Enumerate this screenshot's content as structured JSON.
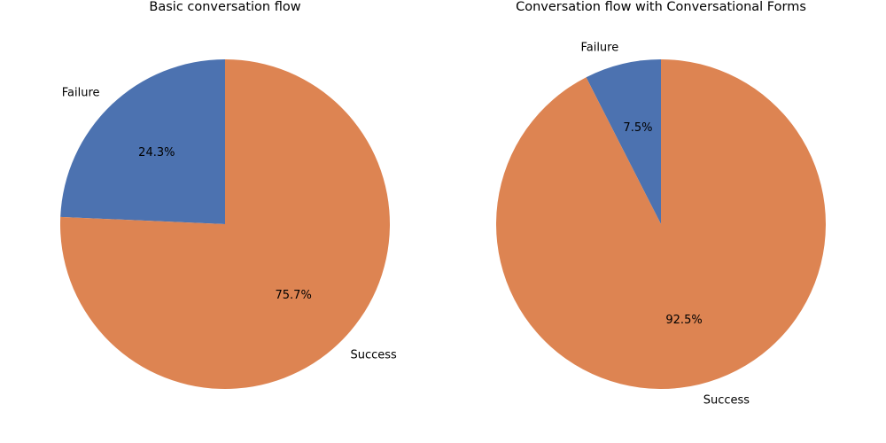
{
  "chart_data": [
    {
      "type": "pie",
      "title": "Basic conversation flow",
      "slices": [
        {
          "label": "Failure",
          "value": 24.3,
          "pct_label": "24.3%",
          "color": "#4c72b0"
        },
        {
          "label": "Success",
          "value": 75.7,
          "pct_label": "75.7%",
          "color": "#dd8452"
        }
      ],
      "start_angle_deg": 90,
      "direction": "counterclockwise",
      "legend": "none"
    },
    {
      "type": "pie",
      "title": "Conversation flow with Conversational Forms",
      "slices": [
        {
          "label": "Failure",
          "value": 7.5,
          "pct_label": "7.5%",
          "color": "#4c72b0"
        },
        {
          "label": "Success",
          "value": 92.5,
          "pct_label": "92.5%",
          "color": "#dd8452"
        }
      ],
      "start_angle_deg": 90,
      "direction": "counterclockwise",
      "legend": "none"
    }
  ]
}
